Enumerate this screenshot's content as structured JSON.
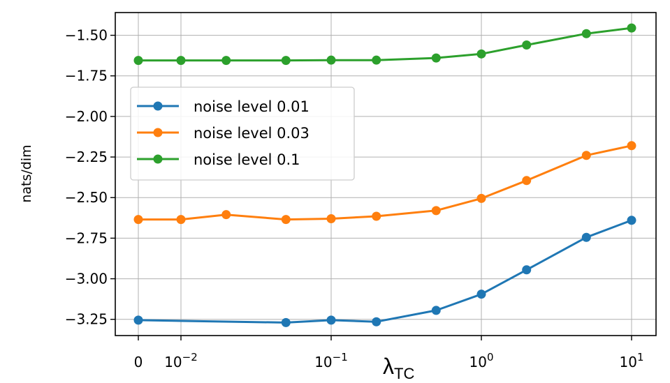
{
  "chart_data": {
    "type": "line",
    "title": "",
    "xlabel": "λ_TC",
    "xlabel_main": "λ",
    "xlabel_sub": "TC",
    "ylabel": "nats/dim",
    "xscale": "symlog",
    "x": [
      0,
      0.01,
      0.02,
      0.05,
      0.1,
      0.2,
      0.5,
      1,
      2,
      5,
      10
    ],
    "xticks": [
      {
        "value": 0,
        "base": "0",
        "exp": ""
      },
      {
        "value": 0.01,
        "base": "10",
        "exp": "−2"
      },
      {
        "value": 0.1,
        "base": "10",
        "exp": "−1"
      },
      {
        "value": 1,
        "base": "10",
        "exp": "0"
      },
      {
        "value": 10,
        "base": "10",
        "exp": "1"
      }
    ],
    "ylim": [
      -3.35,
      -1.36
    ],
    "yticks": [
      -1.5,
      -1.75,
      -2.0,
      -2.25,
      -2.5,
      -2.75,
      -3.0,
      -3.25
    ],
    "ytick_labels": [
      "−1.50",
      "−1.75",
      "−2.00",
      "−2.25",
      "−2.50",
      "−2.75",
      "−3.00",
      "−3.25"
    ],
    "grid": true,
    "legend": "upper-left",
    "series": [
      {
        "name": "noise level 0.01",
        "color": "#1f77b4",
        "points": [
          [
            0,
            -3.255
          ],
          [
            0.05,
            -3.27
          ],
          [
            0.1,
            -3.255
          ],
          [
            0.2,
            -3.265
          ],
          [
            0.5,
            -3.195
          ],
          [
            1,
            -3.095
          ],
          [
            2,
            -2.945
          ],
          [
            5,
            -2.745
          ],
          [
            10,
            -2.64
          ]
        ]
      },
      {
        "name": "noise level 0.03",
        "color": "#ff7f0e",
        "points": [
          [
            0,
            -2.635
          ],
          [
            0.01,
            -2.635
          ],
          [
            0.02,
            -2.605
          ],
          [
            0.05,
            -2.635
          ],
          [
            0.1,
            -2.63
          ],
          [
            0.2,
            -2.615
          ],
          [
            0.5,
            -2.58
          ],
          [
            1,
            -2.505
          ],
          [
            2,
            -2.395
          ],
          [
            5,
            -2.24
          ],
          [
            10,
            -2.18
          ]
        ]
      },
      {
        "name": "noise level 0.1",
        "color": "#2ca02c",
        "points": [
          [
            0,
            -1.655
          ],
          [
            0.01,
            -1.655
          ],
          [
            0.02,
            -1.655
          ],
          [
            0.05,
            -1.655
          ],
          [
            0.1,
            -1.653
          ],
          [
            0.2,
            -1.653
          ],
          [
            0.5,
            -1.64
          ],
          [
            1,
            -1.615
          ],
          [
            2,
            -1.56
          ],
          [
            5,
            -1.49
          ],
          [
            10,
            -1.455
          ]
        ]
      }
    ]
  }
}
